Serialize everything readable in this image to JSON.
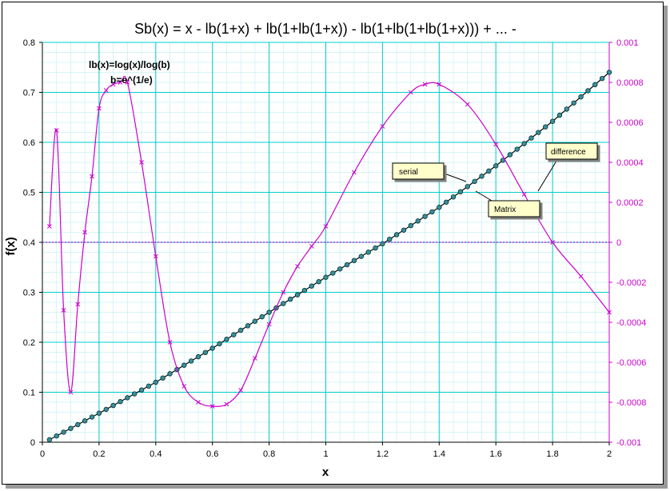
{
  "chart_data": {
    "type": "line",
    "title": "Sb(x) = x - lb(1+x) + lb(1+lb(1+x)) - lb(1+lb(1+lb(1+x))) + ... -",
    "xlabel": "x",
    "ylabel": "f(x)",
    "xlim": [
      0,
      2
    ],
    "ylim": [
      0,
      0.8
    ],
    "y2lim": [
      -0.001,
      0.001
    ],
    "x_ticks": [
      "0",
      "0.2",
      "0.4",
      "0.6",
      "0.8",
      "1",
      "1.2",
      "1.4",
      "1.6",
      "1.8",
      "2"
    ],
    "y_ticks": [
      "0",
      "0.1",
      "0.2",
      "0.3",
      "0.4",
      "0.5",
      "0.6",
      "0.7",
      "0.8"
    ],
    "y2_ticks": [
      "-0.001",
      "-0.0008",
      "-0.0006",
      "-0.0004",
      "-0.0002",
      "0",
      "0.0002",
      "0.0004",
      "0.0006",
      "0.0008",
      "0.001"
    ],
    "grid": true,
    "annotations": [
      "lb(x)=log(x)/log(b)",
      "b=e^(1/e)"
    ],
    "callouts": [
      "serial",
      "Matrix",
      "difference"
    ],
    "colors": {
      "grid": "#00cccc",
      "diff": "#cc00cc",
      "marker_fill": "#3a8f9a",
      "callout_fill": "#ffffcc"
    },
    "series": [
      {
        "axis": "primary",
        "x": [
          0.025,
          0.2,
          0.4,
          0.6,
          0.8,
          1.0,
          1.2,
          1.4,
          1.6,
          1.8,
          2.0
        ],
        "values": [
          0.005,
          0.058,
          0.12,
          0.188,
          0.26,
          0.33,
          0.397,
          0.47,
          0.553,
          0.642,
          0.74
        ]
      },
      {
        "axis": "secondary",
        "x": [
          0.025,
          0.05,
          0.075,
          0.1,
          0.125,
          0.15,
          0.175,
          0.2,
          0.225,
          0.25,
          0.275,
          0.3,
          0.35,
          0.4,
          0.45,
          0.5,
          0.55,
          0.6,
          0.65,
          0.7,
          0.75,
          0.8,
          0.85,
          0.9,
          0.95,
          1.0,
          1.1,
          1.2,
          1.3,
          1.35,
          1.4,
          1.5,
          1.6,
          1.7,
          1.8,
          1.9,
          2.0
        ],
        "values": [
          8e-05,
          0.00056,
          -0.00034,
          -0.00075,
          -0.00031,
          5e-05,
          0.00033,
          0.00067,
          0.00076,
          0.00079,
          0.0008,
          0.0008,
          0.0004,
          -7e-05,
          -0.0005,
          -0.00072,
          -0.0008,
          -0.00082,
          -0.00081,
          -0.00074,
          -0.00058,
          -0.00041,
          -0.00025,
          -0.00012,
          -2e-05,
          8e-05,
          0.00035,
          0.00058,
          0.00075,
          0.00079,
          0.00079,
          0.00069,
          0.00049,
          0.00024,
          0.0,
          -0.00017,
          -0.00035
        ]
      }
    ]
  }
}
